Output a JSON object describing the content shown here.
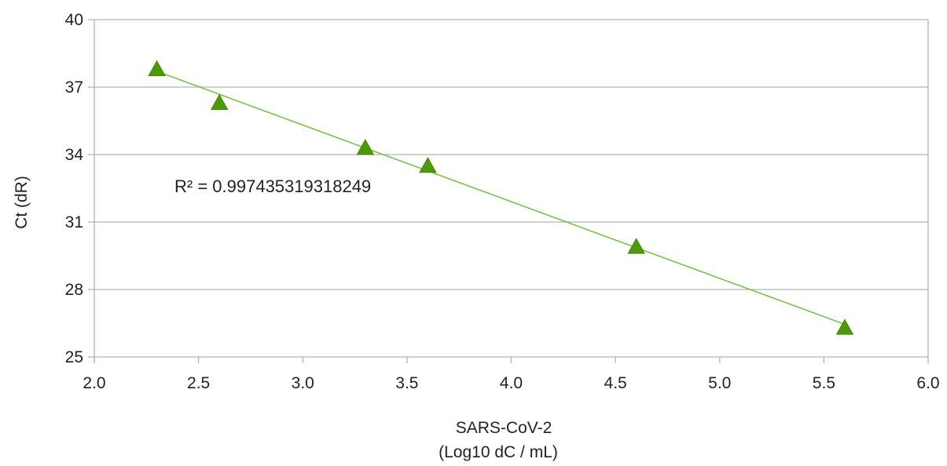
{
  "chart_data": {
    "type": "scatter",
    "title": "",
    "xlabel_lines": [
      "SARS-CoV-2",
      "(Log10 dC / mL)"
    ],
    "ylabel": "Ct (dR)",
    "xlim": [
      2.0,
      6.0
    ],
    "ylim": [
      25,
      40
    ],
    "x_ticks": [
      "2.0",
      "2.5",
      "3.0",
      "3.5",
      "4.0",
      "4.5",
      "5.0",
      "5.5",
      "6.0"
    ],
    "y_ticks": [
      "25",
      "28",
      "31",
      "34",
      "37",
      "40"
    ],
    "grid": "horizontal",
    "marker": "triangle",
    "series": [
      {
        "x": [
          2.3,
          2.6,
          3.3,
          3.6,
          4.6,
          5.6
        ],
        "y": [
          37.8,
          36.3,
          34.3,
          33.5,
          29.9,
          26.3
        ]
      }
    ],
    "trendline": {
      "type": "linear",
      "x_range": [
        2.3,
        5.6
      ],
      "y_range": [
        37.7,
        26.45
      ]
    },
    "annotation": "R² = 0.997435319318249",
    "colors": {
      "marker": "#4e9a06",
      "marker_stroke": "#3d7a05",
      "trendline": "#72bf44",
      "grid": "#b3b3b3",
      "axis": "#b3b3b3"
    }
  }
}
